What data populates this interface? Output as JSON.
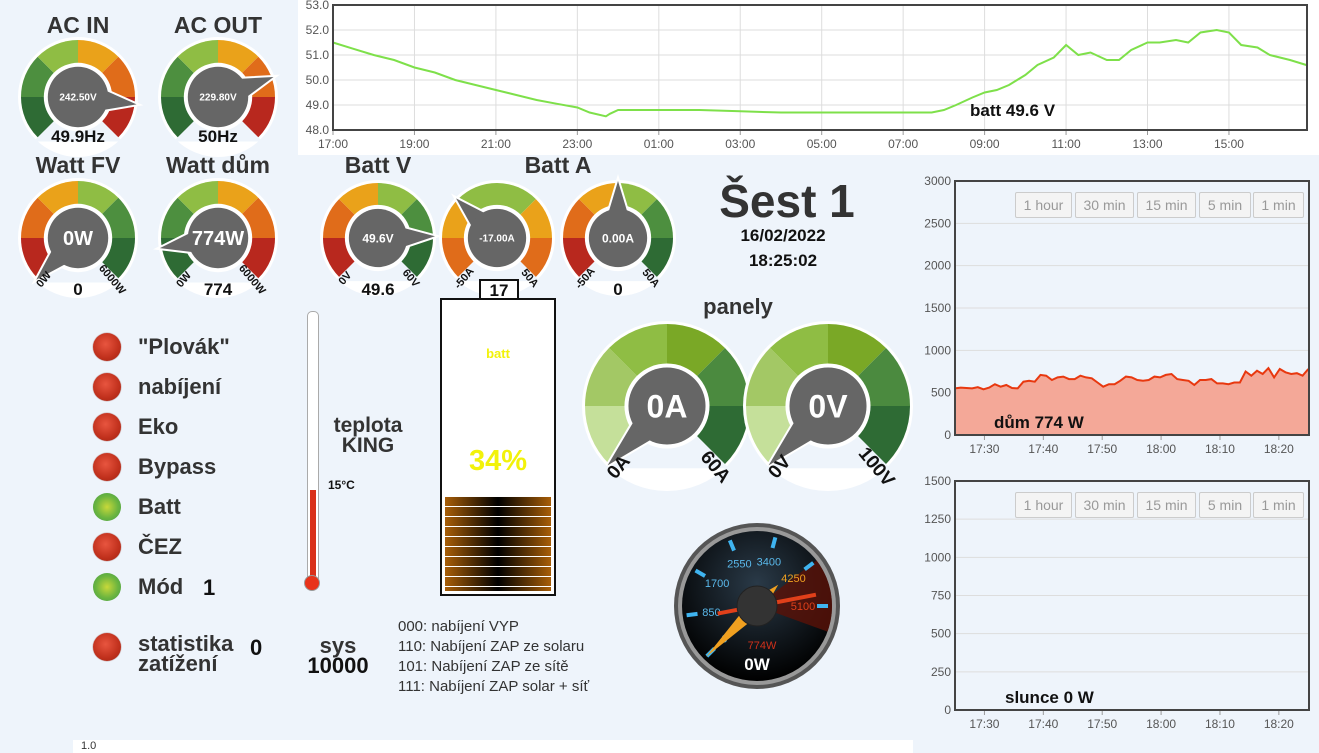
{
  "gauges": [
    {
      "id": "ac-in",
      "title": "AC IN",
      "center_text": "242.50V",
      "value_text": "49.9Hz",
      "min_label": "",
      "max_label": "",
      "needle_fraction": 0.86,
      "colors": [
        "#2e6b34",
        "#4d8f3f",
        "#8fbd44",
        "#eaa21a",
        "#e06c1a",
        "#b8281e"
      ]
    },
    {
      "id": "ac-out",
      "title": "AC OUT",
      "center_text": "229.80V",
      "value_text": "50Hz",
      "min_label": "",
      "max_label": "",
      "needle_fraction": 0.76,
      "colors": [
        "#2e6b34",
        "#4d8f3f",
        "#8fbd44",
        "#eaa21a",
        "#e06c1a",
        "#b8281e"
      ]
    },
    {
      "id": "watt-fv",
      "title": "Watt FV",
      "center_text": "0W",
      "value_text": "0",
      "min_label": "0W",
      "max_label": "6000W",
      "needle_fraction": 0.0,
      "colors": [
        "#b8281e",
        "#e06c1a",
        "#eaa21a",
        "#8fbd44",
        "#4d8f3f",
        "#2e6b34"
      ]
    },
    {
      "id": "watt-dum",
      "title": "Watt dům",
      "center_text": "774W",
      "value_text": "774",
      "min_label": "0W",
      "max_label": "6000W",
      "needle_fraction": 0.13,
      "colors": [
        "#2e6b34",
        "#4d8f3f",
        "#8fbd44",
        "#eaa21a",
        "#e06c1a",
        "#b8281e"
      ]
    },
    {
      "id": "batt-v",
      "title": "Batt V",
      "center_text": "49.6V",
      "value_text": "49.6",
      "min_label": "0V",
      "max_label": "60V",
      "needle_fraction": 0.827,
      "colors": [
        "#b8281e",
        "#e06c1a",
        "#eaa21a",
        "#8fbd44",
        "#4d8f3f",
        "#2e6b34"
      ]
    },
    {
      "id": "batt-a",
      "title": "Batt A",
      "center_text": "-17.00A",
      "value_text": "",
      "min_label": "-50A",
      "max_label": "50A",
      "needle_fraction": 0.33,
      "colors": [
        "#e06c1a",
        "#eaa21a",
        "#8fbd44",
        "#8fbd44",
        "#eaa21a",
        "#e06c1a"
      ]
    },
    {
      "id": "batt-a2",
      "title": "",
      "center_text": "0.00A",
      "value_text": "0",
      "min_label": "-50A",
      "max_label": "50A",
      "needle_fraction": 0.5,
      "colors": [
        "#b8281e",
        "#e06c1a",
        "#eaa21a",
        "#8fbd44",
        "#4d8f3f",
        "#2e6b34"
      ]
    },
    {
      "id": "panely-a",
      "title": "",
      "center_text": "0A",
      "value_text": "",
      "min_label": "0A",
      "max_label": "60A",
      "needle_fraction": 0.0,
      "colors": [
        "#c5e09a",
        "#a3c865",
        "#8fbd44",
        "#7aa826",
        "#4b8a3f",
        "#2e6b34"
      ]
    },
    {
      "id": "panely-v",
      "title": "",
      "center_text": "0V",
      "value_text": "",
      "min_label": "0V",
      "max_label": "100V",
      "needle_fraction": 0.0,
      "colors": [
        "#c5e09a",
        "#a3c865",
        "#8fbd44",
        "#7aa826",
        "#4b8a3f",
        "#2e6b34"
      ]
    }
  ],
  "panely_title": "panely",
  "batt_a_count": "17",
  "station": {
    "name": "Šest 1",
    "date": "16/02/2022",
    "time": "18:25:02"
  },
  "battery": {
    "label": "batt",
    "percent_text": "34%",
    "fill_percent": 34,
    "label_color": "#f2f20a"
  },
  "thermometer": {
    "title_line1": "teplota",
    "title_line2": "KING",
    "value_text": "15°C",
    "fill_fraction": 0.34
  },
  "sys": {
    "label": "sys",
    "value": "10000"
  },
  "modes": [
    "000: nabíjení VYP",
    "110: Nabíjení ZAP ze solaru",
    "101: Nabíjení ZAP ze sítě",
    "111: Nabíjení ZAP solar + síť"
  ],
  "indicators": [
    {
      "label": "\"Plovák\"",
      "state": "red"
    },
    {
      "label": "nabíjení",
      "state": "red"
    },
    {
      "label": "Eko",
      "state": "red"
    },
    {
      "label": "Bypass",
      "state": "red"
    },
    {
      "label": "Batt",
      "state": "green"
    },
    {
      "label": "ČEZ",
      "state": "red"
    },
    {
      "label": "Mód",
      "state": "green",
      "value": "1"
    },
    {
      "label": "statistika",
      "label2": "zatížení",
      "state": "red",
      "value": "0"
    }
  ],
  "speedometer": {
    "ticks": [
      "0",
      "850",
      "1700",
      "2550",
      "3400",
      "4250",
      "5100"
    ],
    "secondary_text": "774W",
    "value_text": "0W",
    "max": 5100,
    "needle_value": 0,
    "secondary_value": 774
  },
  "footer_text": "1.0",
  "range_buttons": [
    "1 hour",
    "30 min",
    "15 min",
    "5 min",
    "1 min"
  ],
  "chart_data": [
    {
      "type": "line",
      "title": "",
      "label": "batt 49.6 V",
      "ylim": [
        48,
        53
      ],
      "yticks": [
        "48.0",
        "49.0",
        "50.0",
        "51.0",
        "52.0",
        "53.0"
      ],
      "xticks": [
        "17:00",
        "19:00",
        "21:00",
        "23:00",
        "01:00",
        "03:00",
        "05:00",
        "07:00",
        "09:00",
        "11:00",
        "13:00",
        "15:00"
      ],
      "x_unit": "hours since 17:00",
      "color": "#7ee04a",
      "x": [
        0,
        0.5,
        1,
        1.5,
        2,
        2.5,
        3,
        3.5,
        4,
        4.5,
        5,
        5.5,
        6,
        6.3,
        6.7,
        6.8,
        7,
        7.2,
        8,
        9,
        10,
        11,
        12,
        13,
        14,
        14.7,
        15,
        15.3,
        15.7,
        16,
        16.3,
        16.6,
        17,
        17.3,
        17.7,
        18,
        18.3,
        18.6,
        19,
        19.3,
        19.6,
        20,
        20.3,
        20.7,
        21,
        21.3,
        21.7,
        22,
        22.3,
        22.7,
        23,
        23.5,
        23.9
      ],
      "values": [
        51.5,
        51.25,
        51.0,
        50.8,
        50.5,
        50.3,
        50.0,
        49.8,
        49.6,
        49.4,
        49.2,
        49.05,
        48.9,
        48.7,
        48.55,
        48.65,
        48.8,
        48.8,
        48.8,
        48.8,
        48.75,
        48.7,
        48.7,
        48.7,
        48.7,
        48.7,
        48.8,
        49.0,
        49.3,
        49.5,
        49.6,
        49.8,
        50.2,
        50.6,
        50.9,
        51.4,
        51.0,
        51.1,
        50.8,
        50.8,
        51.2,
        51.5,
        51.5,
        51.6,
        51.5,
        51.9,
        52.0,
        51.9,
        51.4,
        51.3,
        51.0,
        50.8,
        50.6
      ]
    },
    {
      "type": "area",
      "label": "dům 774 W",
      "ylim": [
        0,
        3000
      ],
      "yticks": [
        "0",
        "500",
        "1000",
        "1500",
        "2000",
        "2500",
        "3000"
      ],
      "xticks": [
        "17:30",
        "17:40",
        "17:50",
        "18:00",
        "18:10",
        "18:20"
      ],
      "x_unit": "minutes since 17:25",
      "color": "#e8380f",
      "fill": "#f4a898",
      "values": [
        550,
        560,
        555,
        550,
        565,
        540,
        560,
        600,
        570,
        590,
        555,
        550,
        630,
        640,
        630,
        710,
        700,
        650,
        680,
        690,
        660,
        660,
        700,
        680,
        670,
        620,
        570,
        600,
        600,
        640,
        690,
        680,
        650,
        640,
        650,
        690,
        680,
        710,
        720,
        660,
        650,
        640,
        590,
        650,
        650,
        660,
        610,
        610,
        600,
        620,
        620,
        750,
        700,
        760,
        720,
        790,
        680,
        780,
        740,
        720,
        730,
        700,
        780
      ]
    },
    {
      "type": "area",
      "label": "slunce 0 W",
      "ylim": [
        0,
        1500
      ],
      "yticks": [
        "0",
        "250",
        "500",
        "750",
        "1000",
        "1250",
        "1500"
      ],
      "xticks": [
        "17:30",
        "17:40",
        "17:50",
        "18:00",
        "18:10",
        "18:20"
      ],
      "x_unit": "minutes since 17:25",
      "color": "#7ee04a",
      "values": [
        0,
        0,
        0,
        0,
        0,
        0,
        0,
        0,
        0,
        0,
        0,
        0,
        0,
        0,
        0,
        0,
        0,
        0,
        0,
        0,
        0,
        0,
        0,
        0,
        0,
        0,
        0,
        0,
        0,
        0,
        0,
        0,
        0,
        0,
        0,
        0,
        0,
        0,
        0,
        0,
        0,
        0,
        0,
        0,
        0,
        0,
        0,
        0,
        0,
        0,
        0,
        0,
        0,
        0,
        0,
        0,
        0,
        0,
        0,
        0,
        0
      ]
    }
  ]
}
